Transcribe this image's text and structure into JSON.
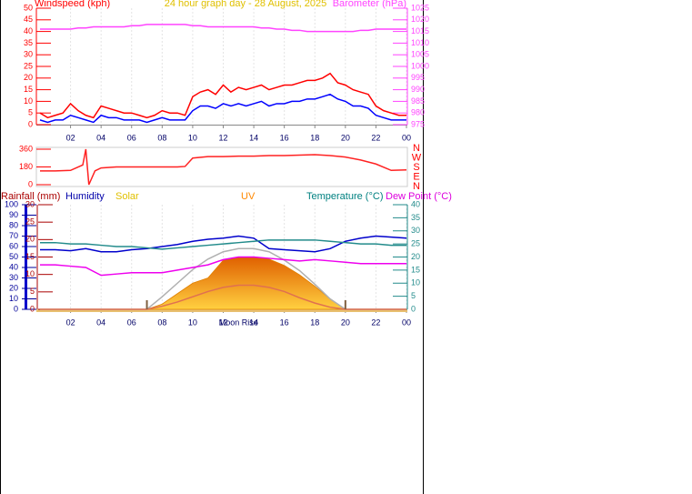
{
  "chart_data": [
    {
      "type": "line",
      "title": "24 hour graph day - 28 August, 2025",
      "ylabel": "Windspeed (kph)",
      "y2label": "Barometer (hPa)",
      "x": [
        0,
        0.5,
        1,
        1.5,
        2,
        2.5,
        3,
        3.5,
        4,
        4.5,
        5,
        5.5,
        6,
        6.5,
        7,
        7.5,
        8,
        8.5,
        9,
        9.5,
        10,
        10.5,
        11,
        11.5,
        12,
        12.5,
        13,
        13.5,
        14,
        14.5,
        15,
        15.5,
        16,
        16.5,
        17,
        17.5,
        18,
        18.5,
        19,
        19.5,
        20,
        20.5,
        21,
        21.5,
        22,
        22.5,
        23,
        23.5,
        24
      ],
      "xlim": [
        0,
        24
      ],
      "xticks": [
        {
          "value": 2,
          "label": "02"
        },
        {
          "value": 4,
          "label": "04"
        },
        {
          "value": 6,
          "label": "06"
        },
        {
          "value": 8,
          "label": "08"
        },
        10,
        12,
        14,
        16,
        18,
        20,
        22,
        {
          "value": 24,
          "label": "00"
        }
      ],
      "ylim": [
        0,
        50
      ],
      "yticks": [
        0,
        5,
        10,
        15,
        20,
        25,
        30,
        35,
        40,
        45,
        50
      ],
      "y2lim": [
        975,
        1025
      ],
      "y2ticks": [
        975,
        980,
        985,
        990,
        995,
        1000,
        1005,
        1010,
        1015,
        1020,
        1025
      ],
      "grid": true,
      "series": [
        {
          "color": "#ff0000",
          "values": [
            5,
            3,
            4,
            5,
            9,
            6,
            4,
            3,
            8,
            7,
            6,
            5,
            5,
            4,
            3,
            4,
            6,
            5,
            5,
            4,
            12,
            14,
            15,
            13,
            17,
            14,
            16,
            15,
            16,
            17,
            15,
            16,
            17,
            17,
            18,
            19,
            19,
            20,
            22,
            18,
            17,
            15,
            14,
            13,
            8,
            6,
            5,
            4,
            4
          ]
        },
        {
          "color": "#0000ff",
          "values": [
            2,
            1,
            2,
            2,
            4,
            3,
            2,
            1,
            4,
            3,
            3,
            2,
            2,
            2,
            1,
            2,
            3,
            2,
            2,
            2,
            6,
            8,
            8,
            7,
            9,
            8,
            9,
            8,
            9,
            10,
            8,
            9,
            9,
            10,
            10,
            11,
            11,
            12,
            13,
            11,
            10,
            8,
            8,
            7,
            4,
            3,
            2,
            2,
            2
          ]
        },
        {
          "color": "#ff44ff",
          "axis": "y2",
          "values": [
            1016,
            1016,
            1016,
            1016,
            1016,
            1016.5,
            1016.5,
            1017,
            1017,
            1017,
            1017,
            1017,
            1017.5,
            1017.5,
            1018,
            1018,
            1018,
            1018,
            1018,
            1018,
            1017.5,
            1017.5,
            1017,
            1017,
            1017,
            1017,
            1017,
            1017,
            1017,
            1016.5,
            1016.5,
            1016,
            1016,
            1015.5,
            1015.5,
            1015,
            1015,
            1015,
            1015,
            1015,
            1015,
            1015,
            1015.5,
            1015.5,
            1016,
            1016,
            1016,
            1016,
            1016
          ]
        }
      ]
    },
    {
      "type": "line",
      "x": [
        0,
        1,
        2,
        2.8,
        3,
        3.2,
        3.6,
        4,
        5,
        6,
        7,
        8,
        9,
        9.5,
        10,
        11,
        12,
        13,
        14,
        15,
        16,
        17,
        18,
        19,
        20,
        21,
        22,
        23,
        24
      ],
      "xlim": [
        0,
        24
      ],
      "ylim": [
        0,
        360
      ],
      "yticks": [
        0,
        180,
        360
      ],
      "compass": [
        "N",
        "W",
        "S",
        "E",
        "N"
      ],
      "series": [
        {
          "color": "#ff2222",
          "values": [
            140,
            140,
            145,
            200,
            360,
            0,
            140,
            170,
            180,
            180,
            180,
            180,
            180,
            185,
            270,
            285,
            285,
            290,
            290,
            295,
            295,
            300,
            305,
            295,
            280,
            250,
            210,
            145,
            150
          ]
        }
      ]
    },
    {
      "type": "line",
      "x": [
        0,
        1,
        2,
        3,
        4,
        5,
        6,
        7,
        8,
        9,
        10,
        11,
        12,
        13,
        14,
        15,
        16,
        17,
        18,
        19,
        20,
        21,
        22,
        23,
        24
      ],
      "xlim": [
        0,
        24
      ],
      "xticks": [
        {
          "value": 2,
          "label": "02"
        },
        {
          "value": 4,
          "label": "04"
        },
        {
          "value": 6,
          "label": "06"
        },
        {
          "value": 8,
          "label": "08"
        },
        10,
        12,
        14,
        16,
        18,
        20,
        22,
        {
          "value": 24,
          "label": "00"
        }
      ],
      "ylim": [
        0,
        100
      ],
      "yticks": [
        0,
        10,
        20,
        30,
        40,
        50,
        60,
        70,
        80,
        90,
        100
      ],
      "rainfall_axis": {
        "label": "Rainfall (mm)",
        "lim": [
          0,
          30
        ],
        "ticks": [
          0,
          5,
          10,
          15,
          20,
          25,
          30
        ]
      },
      "y2lim": [
        0,
        40
      ],
      "y2ticks": [
        0,
        5,
        10,
        15,
        20,
        25,
        30,
        35,
        40
      ],
      "annotation": {
        "text": "Moon Rise",
        "x": 13
      },
      "markers": [
        7,
        20
      ],
      "series": [
        {
          "name": "Solar",
          "color": "#f5a000",
          "fill": true,
          "values": [
            0,
            0,
            0,
            0,
            0,
            0,
            0,
            0,
            5,
            15,
            25,
            30,
            47,
            50,
            50,
            48,
            42,
            33,
            22,
            10,
            0,
            0,
            0,
            0,
            0
          ]
        },
        {
          "color": "#b0b0b0",
          "values": [
            0,
            0,
            0,
            0,
            0,
            0,
            0,
            0,
            12,
            25,
            38,
            48,
            55,
            58,
            58,
            55,
            47,
            37,
            24,
            10,
            0,
            0,
            0,
            0,
            0
          ]
        },
        {
          "name": "UV",
          "color": "#e07050",
          "values": [
            0,
            0,
            0,
            0,
            0,
            0,
            0,
            0,
            3,
            7,
            12,
            17,
            21,
            23,
            23,
            21,
            17,
            11,
            6,
            2,
            0,
            0,
            0,
            0,
            0
          ]
        },
        {
          "name": "Humidity",
          "color": "#0000cc",
          "values": [
            57,
            57,
            56,
            58,
            55,
            55,
            57,
            58,
            60,
            62,
            65,
            67,
            68,
            70,
            68,
            58,
            57,
            56,
            55,
            58,
            65,
            68,
            70,
            69,
            68
          ]
        },
        {
          "name": "Temperature (°C)",
          "color": "#228b8b",
          "axis": "y2",
          "values": [
            25.5,
            25.5,
            25,
            25,
            24.5,
            24,
            24,
            23.5,
            23,
            23.5,
            24,
            24.5,
            25,
            25.5,
            26,
            26.5,
            26.5,
            26.5,
            26.5,
            26,
            25.5,
            25,
            25,
            24.5,
            24.5
          ]
        },
        {
          "name": "Dew Point (°C)",
          "color": "#ee00ee",
          "axis": "y2",
          "values": [
            17,
            17,
            16.5,
            16,
            13,
            13.5,
            14,
            14,
            14,
            15,
            16,
            17,
            19,
            20,
            20,
            19.5,
            19,
            18.5,
            19,
            18.5,
            18,
            17.5,
            17.5,
            17.5,
            17.5
          ]
        }
      ]
    }
  ]
}
